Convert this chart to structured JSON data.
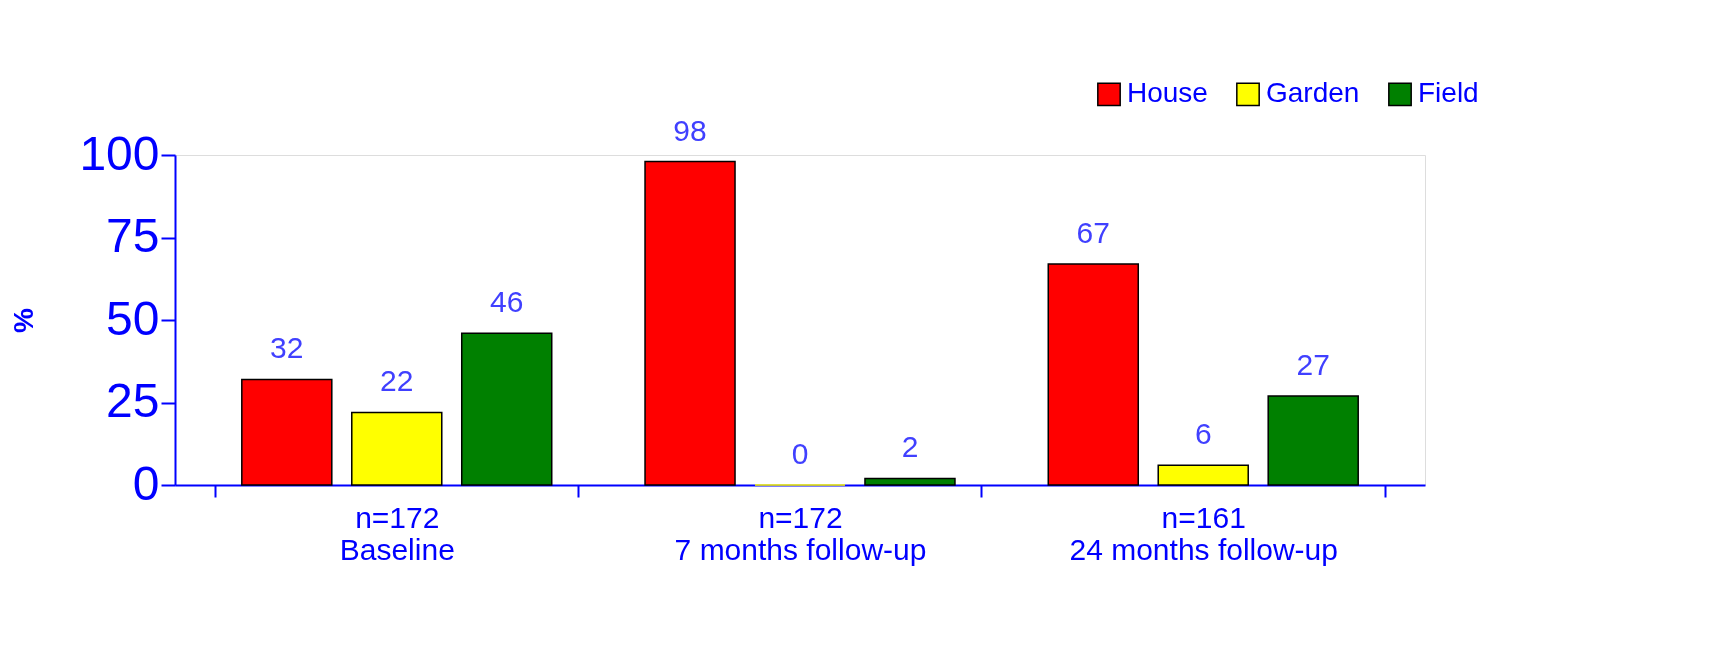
{
  "chart_data": {
    "type": "bar",
    "ylabel": "%",
    "categories": [
      "n=172\nBaseline",
      "n=172\n7 months follow-up",
      "n=161\n24 months follow-up"
    ],
    "series": [
      {
        "name": "House",
        "color": "#ff0000",
        "values": [
          32,
          98,
          67
        ]
      },
      {
        "name": "Garden",
        "color": "#ffff00",
        "values": [
          22,
          0,
          6
        ]
      },
      {
        "name": "Field",
        "color": "#008000",
        "values": [
          46,
          2,
          27
        ]
      }
    ],
    "ylim": [
      0,
      100
    ],
    "yticks": [
      0,
      25,
      50,
      75,
      100
    ],
    "grid": false,
    "legend": "top right",
    "data_labels": true
  }
}
